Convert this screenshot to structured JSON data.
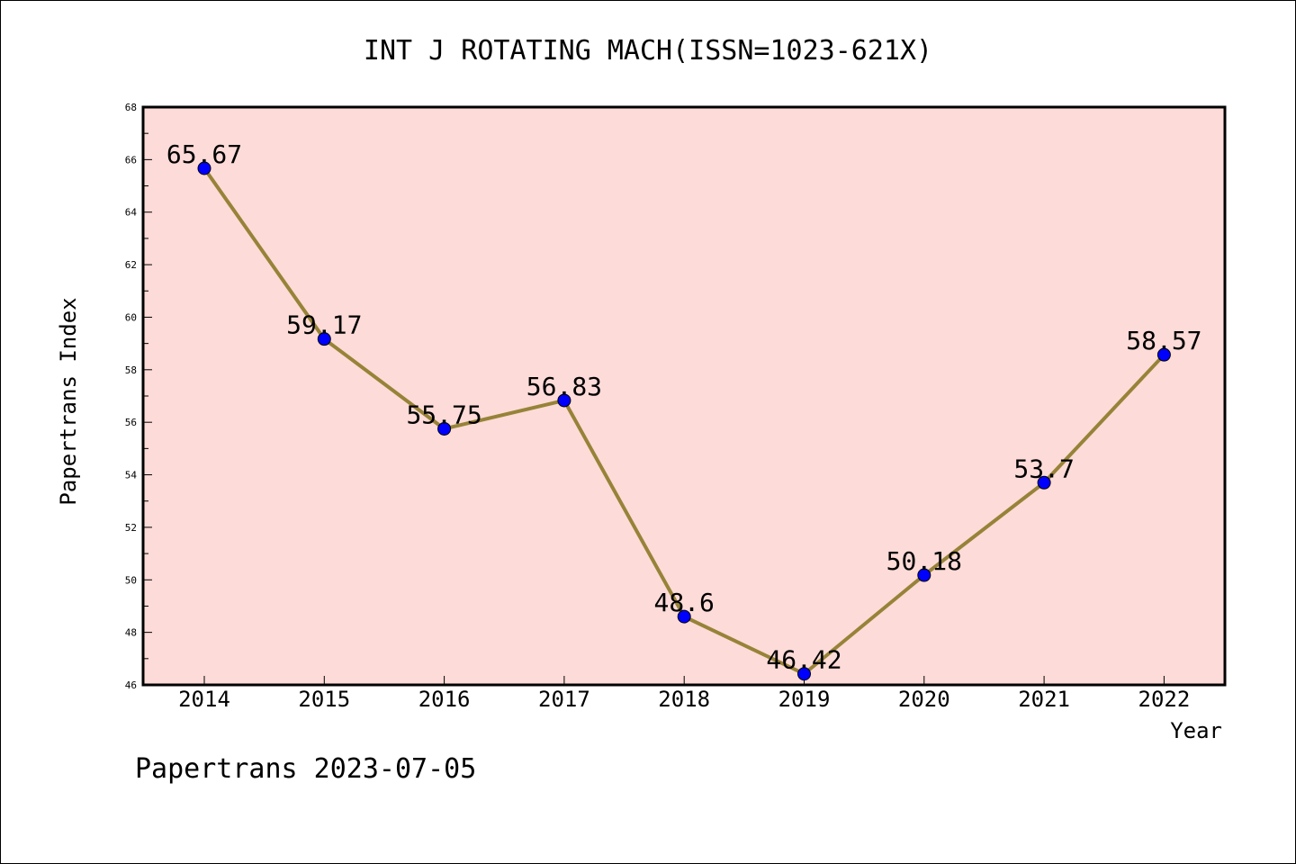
{
  "chart_data": {
    "type": "line",
    "title": "INT J ROTATING MACH(ISSN=1023-621X)",
    "xlabel": "Year",
    "ylabel": "Papertrans Index",
    "categories": [
      "2014",
      "2015",
      "2016",
      "2017",
      "2018",
      "2019",
      "2020",
      "2021",
      "2022"
    ],
    "values": [
      65.67,
      59.17,
      55.75,
      56.83,
      48.6,
      46.42,
      50.18,
      53.7,
      58.57
    ],
    "data_labels": [
      "65.67",
      "59.17",
      "55.75",
      "56.83",
      "48.6",
      "46.42",
      "50.18",
      "53.7",
      "58.57"
    ],
    "ylim": [
      46,
      68
    ],
    "yticks": [
      "46",
      "48",
      "50",
      "52",
      "54",
      "56",
      "58",
      "60",
      "62",
      "64",
      "66",
      "68"
    ],
    "grid": false,
    "colors": {
      "plot_background": "#fddbd8",
      "line": "#978338",
      "marker": "#0000ff"
    }
  },
  "footer": "Papertrans 2023-07-05"
}
